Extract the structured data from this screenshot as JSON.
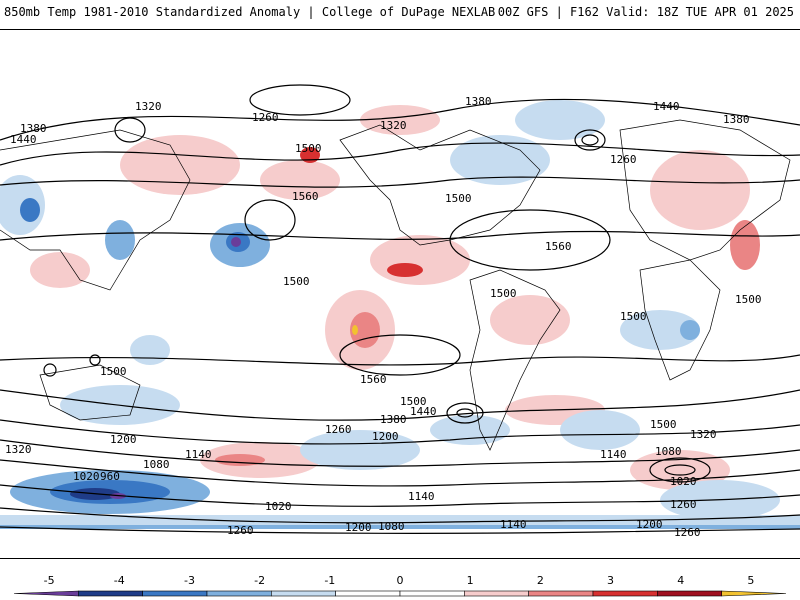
{
  "header": {
    "left": "850mb Temp 1981-2010 Standardized Anomaly | College of DuPage NEXLAB",
    "right": "00Z GFS | F162 Valid: 18Z TUE APR 01 2025"
  },
  "colorbar": {
    "ticks": [
      "-5",
      "-4",
      "-3",
      "-2",
      "-1",
      "0",
      "1",
      "2",
      "3",
      "4",
      "5"
    ],
    "min": -5.5,
    "max": 5.5,
    "colors": [
      "#6a3d9a",
      "#1f3c88",
      "#3a78c4",
      "#7fb0de",
      "#c6dcf0",
      "#ffffff",
      "#ffffff",
      "#f6cccc",
      "#ea8585",
      "#d73030",
      "#a01020",
      "#f2c230"
    ]
  },
  "map": {
    "contour_labels": [
      "1320",
      "1380",
      "1440",
      "1500",
      "1560",
      "1260",
      "1200",
      "1140",
      "1080",
      "1020",
      "960"
    ]
  }
}
